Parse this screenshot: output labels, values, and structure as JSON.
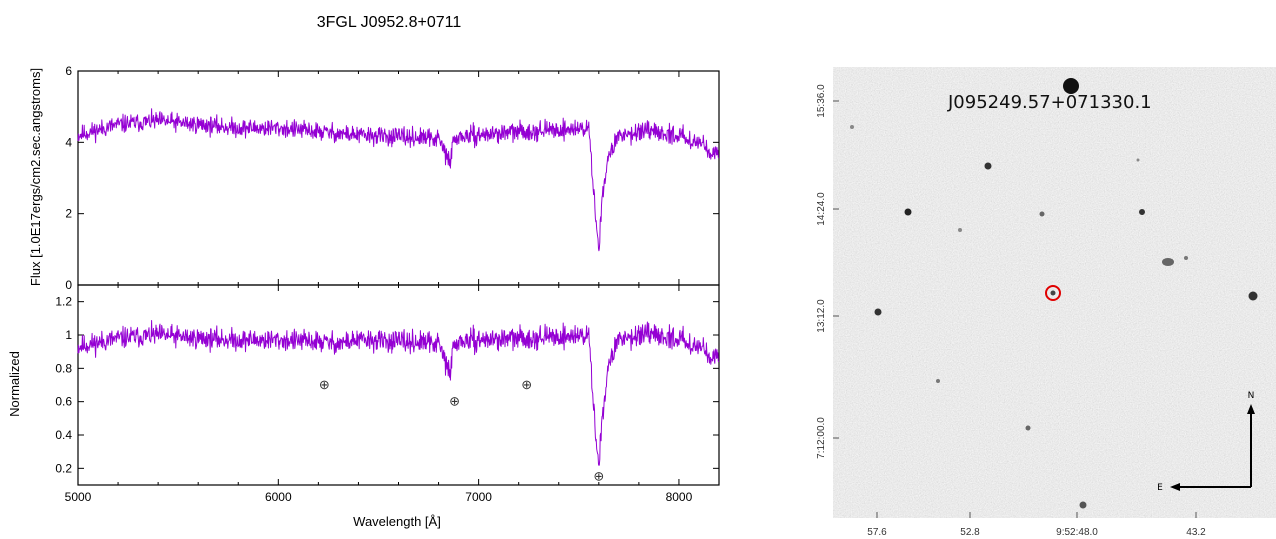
{
  "chart_data": [
    {
      "type": "line",
      "title": "3FGL J0952.8+0711",
      "ylabel": "Flux [1.0E17ergs/cm2.sec.angstroms]",
      "xlim": [
        5000,
        8200
      ],
      "ylim": [
        0,
        6
      ],
      "yticks": [
        0,
        2,
        4,
        6
      ],
      "line_color": "#9400d3",
      "series": [
        {
          "x": [
            5000,
            5200,
            5400,
            5600,
            5800,
            6000,
            6200,
            6400,
            6600,
            6800,
            6860,
            6870,
            6900,
            7000,
            7200,
            7400,
            7550,
            7590,
            7600,
            7620,
            7650,
            7700,
            7800,
            8000,
            8100,
            8200
          ],
          "values": [
            4.2,
            4.5,
            4.6,
            4.5,
            4.4,
            4.4,
            4.3,
            4.2,
            4.15,
            4.1,
            3.4,
            4.0,
            4.15,
            4.2,
            4.3,
            4.35,
            4.4,
            1.5,
            1.0,
            2.7,
            3.6,
            4.2,
            4.3,
            4.2,
            4.0,
            3.6
          ]
        }
      ]
    },
    {
      "type": "line",
      "ylabel": "Normalized",
      "xlabel": "Wavelength [Å]",
      "xlim": [
        5000,
        8200
      ],
      "ylim": [
        0.1,
        1.3
      ],
      "xticks": [
        5000,
        6000,
        7000,
        8000
      ],
      "yticks": [
        0.2,
        0.4,
        0.6,
        0.8,
        1,
        1.2
      ],
      "line_color": "#9400d3",
      "series": [
        {
          "x": [
            5000,
            5200,
            5400,
            5600,
            5800,
            6000,
            6200,
            6300,
            6400,
            6600,
            6800,
            6860,
            6870,
            6900,
            7000,
            7200,
            7400,
            7550,
            7590,
            7600,
            7620,
            7650,
            7700,
            7800,
            8000,
            8100,
            8200
          ],
          "values": [
            0.93,
            0.98,
            1.0,
            0.98,
            0.97,
            0.97,
            0.96,
            0.95,
            0.97,
            0.96,
            0.95,
            0.76,
            0.92,
            0.96,
            0.97,
            0.98,
            0.99,
            1.0,
            0.3,
            0.23,
            0.55,
            0.82,
            0.98,
            1.0,
            0.98,
            0.93,
            0.85
          ]
        }
      ],
      "annotations": [
        {
          "text": "⊕",
          "x": 6230,
          "y": 0.7
        },
        {
          "text": "⊕",
          "x": 6880,
          "y": 0.6
        },
        {
          "text": "⊕",
          "x": 7240,
          "y": 0.7
        },
        {
          "text": "⊕",
          "x": 7600,
          "y": 0.15
        }
      ]
    }
  ],
  "finder": {
    "label": "J095249.57+071330.1",
    "x_ticks": [
      "57.6",
      "52.8",
      "9:52:48.0",
      "43.2"
    ],
    "y_ticks": [
      "15:36.0",
      "14:24.0",
      "13:12.0",
      "7:12:00.0"
    ],
    "compass_n": "N",
    "compass_e": "E",
    "marker_color": "#e00000"
  }
}
